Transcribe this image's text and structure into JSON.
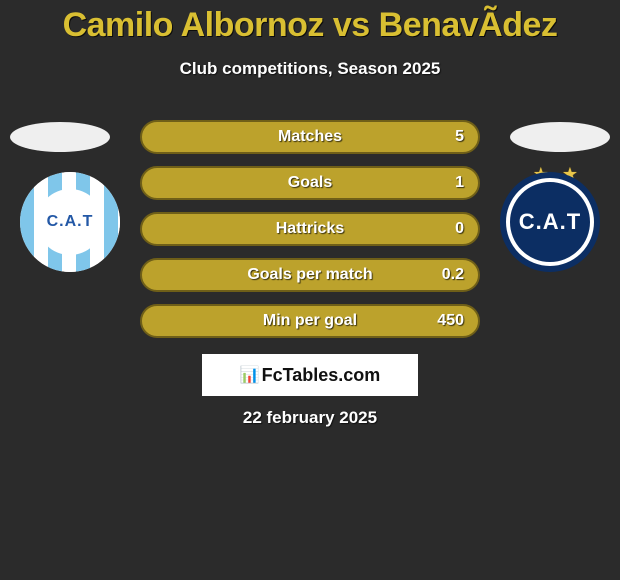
{
  "colors": {
    "background": "#2b2b2b",
    "pill_fill": "#bca22c",
    "pill_border": "#6f5f18",
    "title_color": "#d9bf32",
    "text_white": "#ffffff",
    "ellipse": "#efefef",
    "brand_bg": "#ffffff",
    "star_color": "#e9c64a"
  },
  "title": "Camilo Albornoz vs BenavÃ­dez",
  "subtitle": "Club competitions, Season 2025",
  "stats": [
    {
      "label": "Matches",
      "value": "5"
    },
    {
      "label": "Goals",
      "value": "1"
    },
    {
      "label": "Hattricks",
      "value": "0"
    },
    {
      "label": "Goals per match",
      "value": "0.2"
    },
    {
      "label": "Min per goal",
      "value": "450"
    }
  ],
  "left_badge": {
    "text": "C.A.T"
  },
  "right_badge": {
    "text": "C.A.T",
    "stars": "★ ★"
  },
  "brand": {
    "icon": "📊",
    "text": "FcTables.com"
  },
  "date": "22 february 2025"
}
